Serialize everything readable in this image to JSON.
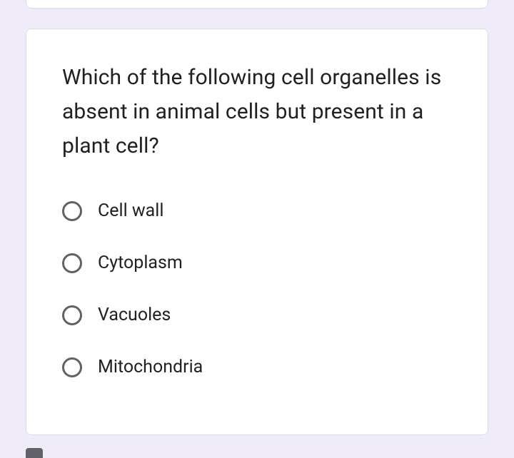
{
  "card": {
    "background_color": "#ffffff",
    "border_color": "#dadce0",
    "border_radius": 8
  },
  "page": {
    "background_color": "#f0ebf8"
  },
  "question": {
    "text": "Which of the following cell organelles is absent in animal cells but present in a plant cell?",
    "fontsize": 30,
    "color": "#202124"
  },
  "options": [
    {
      "label": "Cell wall",
      "selected": false
    },
    {
      "label": "Cytoplasm",
      "selected": false
    },
    {
      "label": "Vacuoles",
      "selected": false
    },
    {
      "label": "Mitochondria",
      "selected": false
    }
  ],
  "radio": {
    "border_color": "#5f6368",
    "size": 28
  },
  "option_label": {
    "fontsize": 25,
    "color": "#202124"
  }
}
